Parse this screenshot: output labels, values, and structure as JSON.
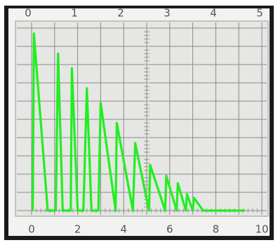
{
  "chart_data": {
    "type": "line",
    "x": [
      0.05,
      0.1,
      0.7,
      1.05,
      1.15,
      1.35,
      1.7,
      1.75,
      2.0,
      2.25,
      2.4,
      2.6,
      2.9,
      3.0,
      3.65,
      3.7,
      4.4,
      4.5,
      5.1,
      5.15,
      5.8,
      5.85,
      6.3,
      6.35,
      6.7,
      6.75,
      7.0,
      7.05,
      7.45,
      9.25
    ],
    "series": [
      {
        "color": "#22ee22",
        "values": [
          0,
          9.7,
          0,
          0,
          8.6,
          0,
          0,
          7.8,
          0,
          0,
          6.7,
          0,
          0,
          5.9,
          0,
          4.8,
          0,
          3.7,
          0,
          2.5,
          0,
          1.9,
          0,
          1.5,
          0,
          0.9,
          0,
          0.7,
          0,
          0
        ]
      }
    ],
    "xlim": [
      0,
      10
    ],
    "xticks": [
      0,
      2,
      4,
      6,
      8,
      10
    ],
    "x2lim": [
      0,
      5
    ],
    "x2ticks": [
      0,
      1,
      2,
      3,
      4,
      5
    ],
    "ylim": [
      0,
      10
    ]
  }
}
